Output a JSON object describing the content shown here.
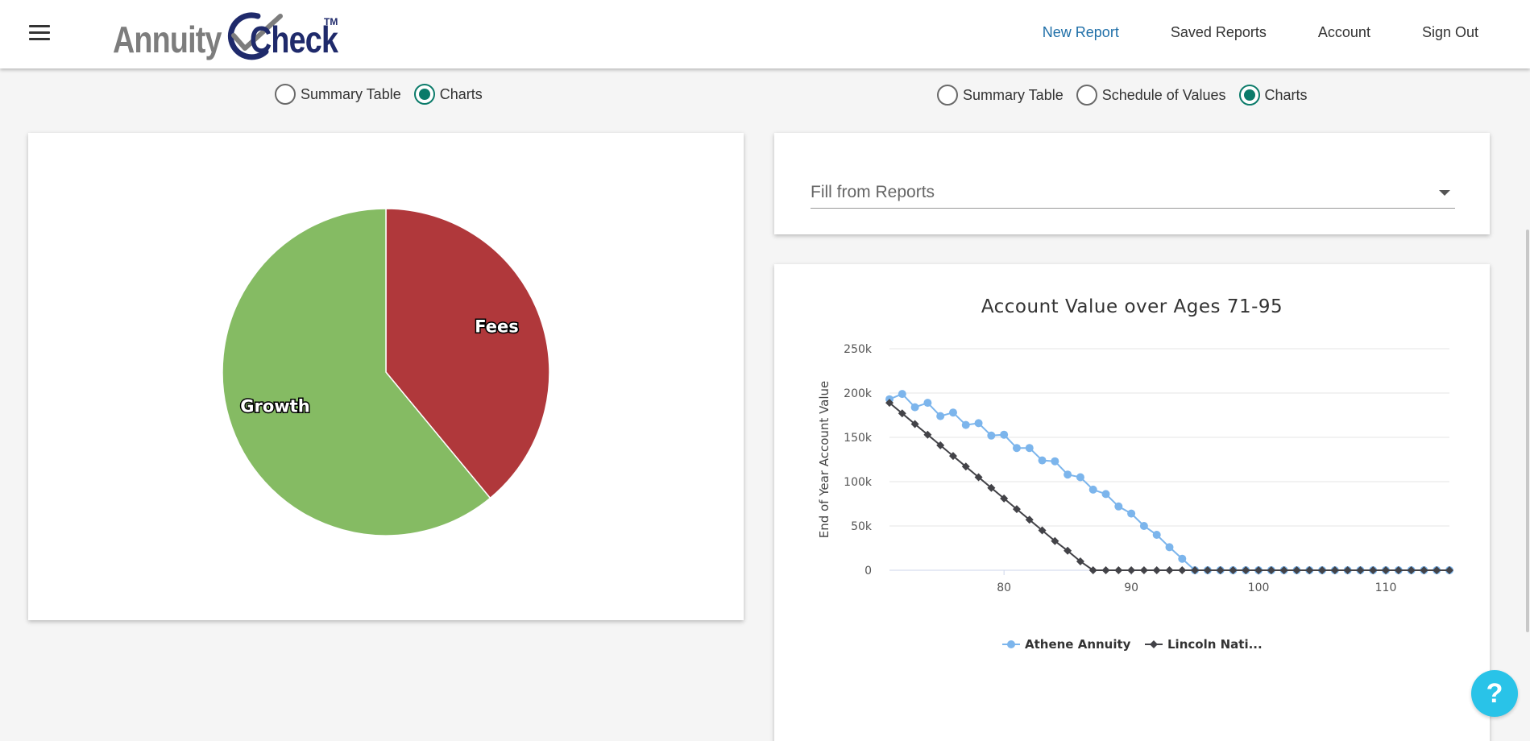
{
  "header": {
    "logo_left": "Annuity",
    "logo_right": "Check",
    "logo_tm": "TM",
    "nav": [
      {
        "label": "New Report",
        "active": true
      },
      {
        "label": "Saved Reports",
        "active": false
      },
      {
        "label": "Account",
        "active": false
      },
      {
        "label": "Sign Out",
        "active": false
      }
    ]
  },
  "left_view_toggle": [
    {
      "label": "Summary Table",
      "checked": false
    },
    {
      "label": "Charts",
      "checked": true
    }
  ],
  "right_view_toggle": [
    {
      "label": "Summary Table",
      "checked": false
    },
    {
      "label": "Schedule of Values",
      "checked": false
    },
    {
      "label": "Charts",
      "checked": true
    }
  ],
  "fill_select": {
    "label": "Fill from Reports"
  },
  "colors": {
    "accent": "#0b7b6a",
    "nav_active": "#1f6fa8",
    "fees": "#b0383b",
    "growth": "#85bb63",
    "athene": "#7cb5ec",
    "lincoln": "#434348",
    "help": "#29c3e8"
  },
  "help_button": {
    "label": "?"
  },
  "chart_data": [
    {
      "type": "pie",
      "slices": [
        {
          "label": "Fees",
          "value": 39,
          "color": "#b0383b"
        },
        {
          "label": "Growth",
          "value": 61,
          "color": "#85bb63"
        }
      ]
    },
    {
      "type": "line",
      "title": "Account Value over Ages 71-95",
      "ylabel": "End of Year Account Value",
      "xlabel": "",
      "xlim": [
        71,
        115
      ],
      "ylim": [
        0,
        250000
      ],
      "x_ticks": [
        80,
        90,
        100,
        110
      ],
      "y_ticks": [
        {
          "value": 0,
          "label": "0"
        },
        {
          "value": 50000,
          "label": "50k"
        },
        {
          "value": 100000,
          "label": "100k"
        },
        {
          "value": 150000,
          "label": "150k"
        },
        {
          "value": 200000,
          "label": "200k"
        },
        {
          "value": 250000,
          "label": "250k"
        }
      ],
      "grid": true,
      "legend_position": "bottom",
      "x": [
        71,
        72,
        73,
        74,
        75,
        76,
        77,
        78,
        79,
        80,
        81,
        82,
        83,
        84,
        85,
        86,
        87,
        88,
        89,
        90,
        91,
        92,
        93,
        94,
        95,
        96,
        97,
        98,
        99,
        100,
        101,
        102,
        103,
        104,
        105,
        106,
        107,
        108,
        109,
        110,
        111,
        112,
        113,
        114,
        115
      ],
      "series": [
        {
          "name": "Athene Annuity",
          "marker": "circle",
          "color": "#7cb5ec",
          "values": [
            193000,
            199000,
            184000,
            189000,
            174000,
            178000,
            164000,
            166000,
            152000,
            153000,
            138000,
            138000,
            124000,
            123000,
            108000,
            105000,
            91000,
            86000,
            72000,
            64000,
            50000,
            40000,
            26000,
            13000,
            0,
            0,
            0,
            0,
            0,
            0,
            0,
            0,
            0,
            0,
            0,
            0,
            0,
            0,
            0,
            0,
            0,
            0,
            0,
            0,
            0
          ]
        },
        {
          "name": "Lincoln Nati...",
          "marker": "diamond",
          "color": "#434348",
          "values": [
            189000,
            177000,
            165000,
            153000,
            141000,
            129000,
            117000,
            105000,
            93000,
            81000,
            69000,
            57000,
            45000,
            33000,
            22000,
            10000,
            0,
            0,
            0,
            0,
            0,
            0,
            0,
            0,
            0,
            0,
            0,
            0,
            0,
            0,
            0,
            0,
            0,
            0,
            0,
            0,
            0,
            0,
            0,
            0,
            0,
            0,
            0,
            0,
            0
          ]
        }
      ]
    }
  ]
}
